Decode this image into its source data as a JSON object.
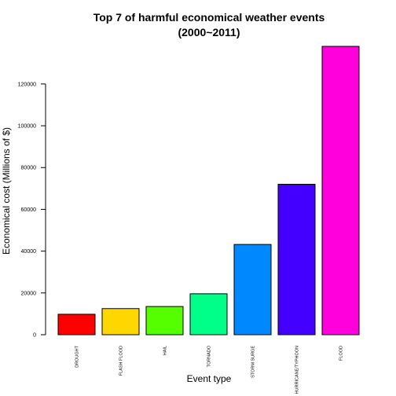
{
  "chart_data": {
    "type": "bar",
    "title": "Top 7 of harmful economical weather events",
    "subtitle": "(2000~2011)",
    "xlabel": "Event type",
    "ylabel": "Economical cost (Millions of $)",
    "categories": [
      "DROUGHT",
      "FLASH FLOOD",
      "HAIL",
      "TORNADO",
      "STORM SURGE",
      "HURRICANE/TYPHOON",
      "FLOOD"
    ],
    "values": [
      9800,
      12500,
      13500,
      19600,
      43200,
      72000,
      138000
    ],
    "colors": [
      "#ff0000",
      "#ffd700",
      "#55ff00",
      "#00ff88",
      "#0088ff",
      "#4400ff",
      "#ff00dd"
    ],
    "yticks": [
      0,
      20000,
      40000,
      60000,
      80000,
      100000,
      120000
    ],
    "ylim": [
      0,
      138000
    ],
    "grid": false,
    "legend": false
  }
}
